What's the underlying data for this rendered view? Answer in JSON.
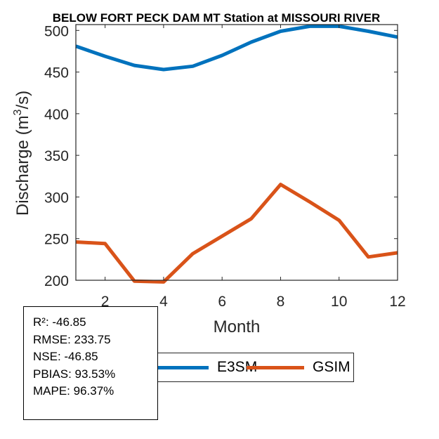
{
  "chart_data": {
    "type": "line",
    "title": "BELOW FORT PECK DAM MT  Station at  MISSOURI RIVER",
    "xlabel": "Month",
    "ylabel_main": "Discharge (m",
    "ylabel_sup": "3",
    "ylabel_end": "/s)",
    "x": [
      1,
      2,
      3,
      4,
      5,
      6,
      7,
      8,
      9,
      10,
      11,
      12
    ],
    "xlim": [
      1,
      12
    ],
    "ylim": [
      200,
      507
    ],
    "xticks": [
      2,
      4,
      6,
      8,
      10,
      12
    ],
    "xtick_labels": [
      "2",
      "4",
      "6",
      "8",
      "10",
      "12"
    ],
    "yticks": [
      200,
      250,
      300,
      350,
      400,
      450,
      500
    ],
    "ytick_labels": [
      "200",
      "250",
      "300",
      "350",
      "400",
      "450",
      "500"
    ],
    "grid": false,
    "legend_position": "bottom-center",
    "series": [
      {
        "name": "E3SM",
        "color": "#0072BD",
        "values": [
          481,
          469,
          458,
          453,
          457,
          470,
          486,
          499,
          505,
          505,
          499,
          492
        ]
      },
      {
        "name": "GSIM",
        "color": "#D95319",
        "values": [
          246,
          244,
          199,
          198,
          232,
          253,
          274,
          315,
          294,
          272,
          228,
          233
        ]
      }
    ]
  },
  "stats": {
    "r2": "R²: -46.85",
    "rmse": "RMSE: 233.75",
    "nse": "NSE: -46.85",
    "pbias": "PBIAS: 93.53%",
    "mape": "MAPE: 96.37%"
  }
}
